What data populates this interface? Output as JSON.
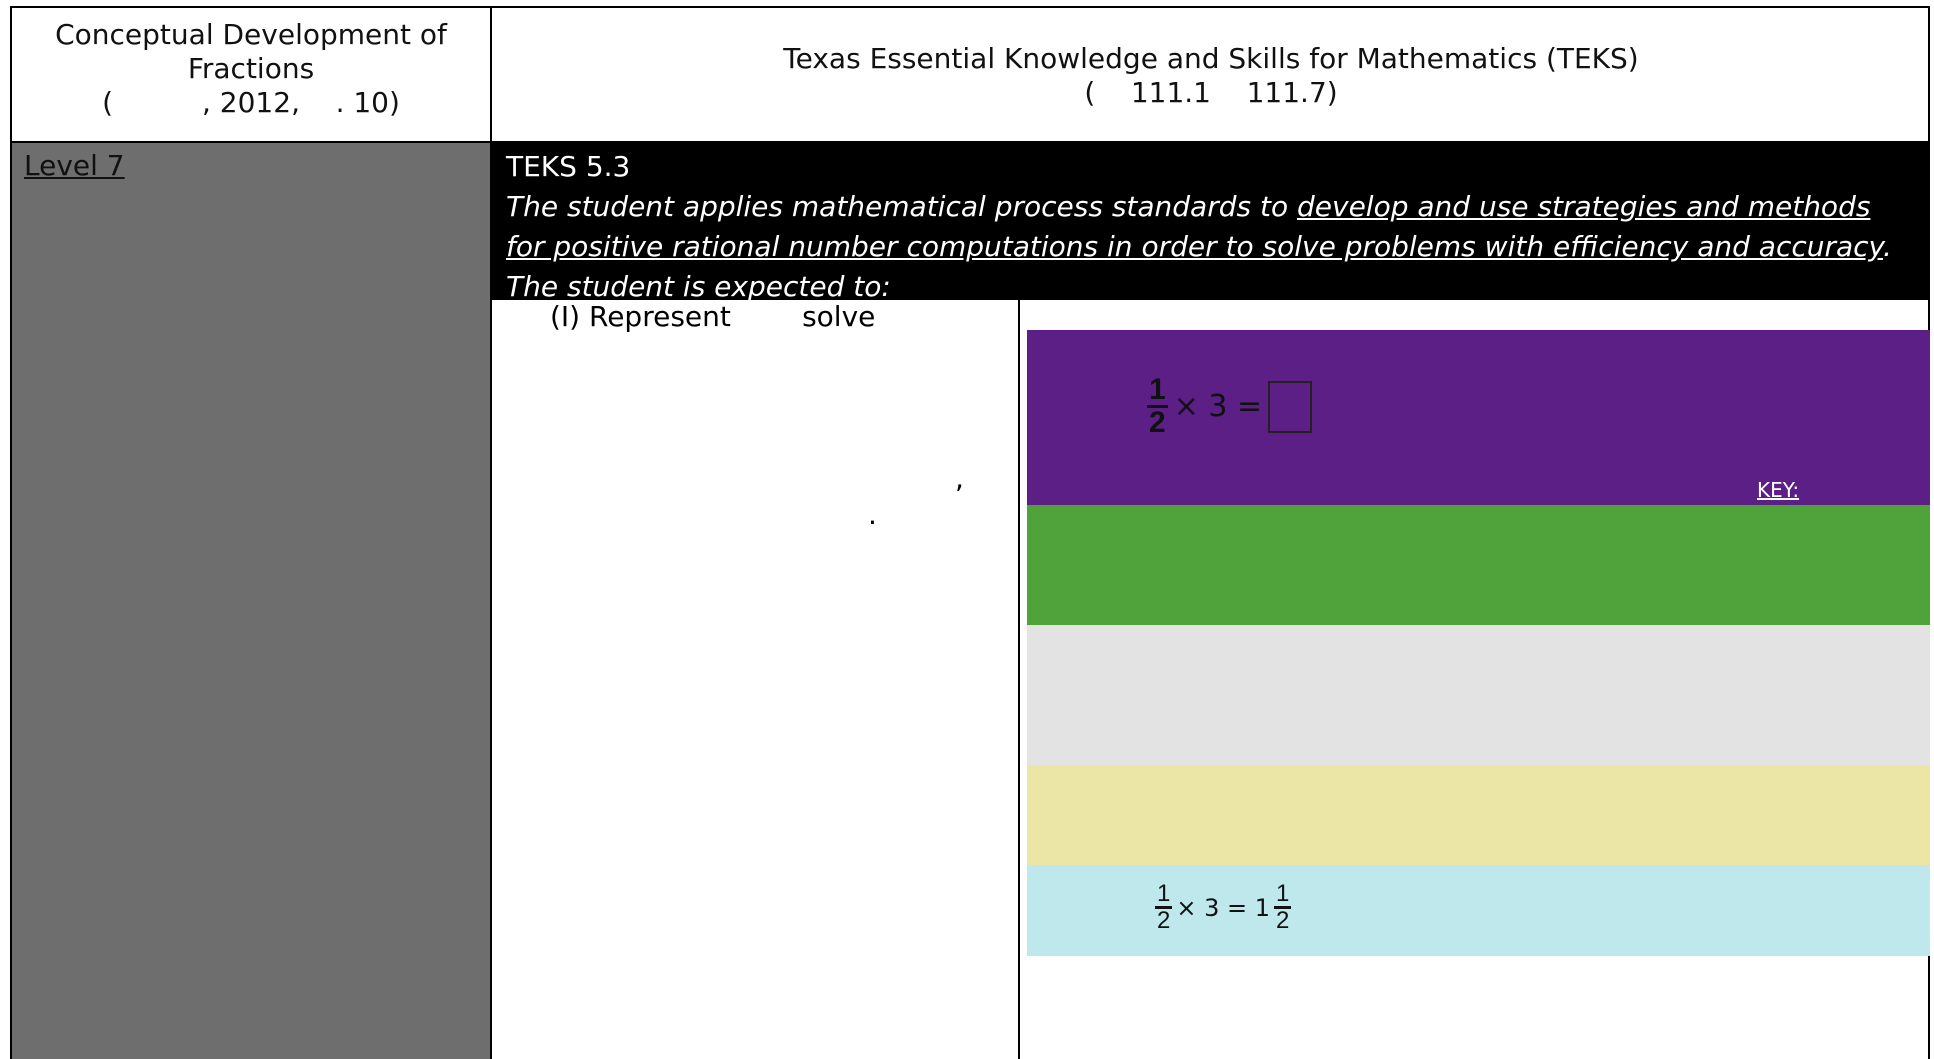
{
  "header": {
    "left": [
      "Conceptual Development of",
      "Fractions",
      "(          , 2012,    . 10)"
    ],
    "right": [
      "Texas Essential Knowledge and Skills for Mathematics (TEKS)",
      "(    111.1    111.7)"
    ]
  },
  "row": {
    "level": "Level 7",
    "teks": {
      "code": "TEKS 5.3",
      "statement": [
        "The student applies mathematical process standards to ",
        "develop and use strategies and methods for positive rational number computations in order to solve problems with efficiency and accuracy",
        ". The student is expected to:"
      ]
    },
    "expectation": [
      "(I) Represent        solve",
      ",",
      "."
    ],
    "figure": {
      "problem": {
        "numerator": "1",
        "denominator": "2",
        "rest": "× 3 ="
      },
      "key": "KEY:",
      "answer": {
        "numerator": "1",
        "denominator": "2",
        "rest": "× 3 = 1",
        "mixed_numerator": "1",
        "mixed_denominator": "2"
      }
    }
  }
}
